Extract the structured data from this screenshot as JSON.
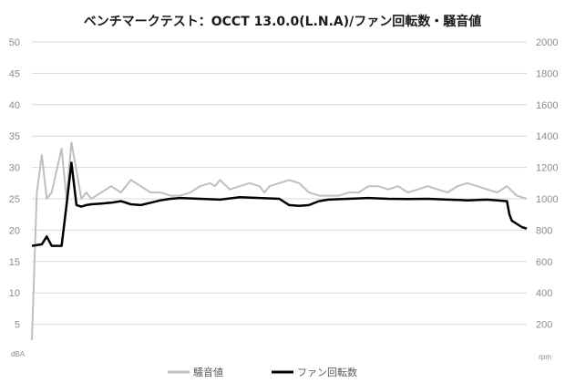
{
  "chart_data": {
    "type": "line",
    "title": "ベンチマークテスト：OCCT 13.0.0(L.N.A)/ファン回転数・騒音値",
    "y_left": {
      "unit_label": "dBA",
      "min": 0,
      "max": 50,
      "ticks": [
        5,
        10,
        15,
        20,
        25,
        30,
        35,
        40,
        45,
        50
      ]
    },
    "y_right": {
      "unit_label": "rpm",
      "min": 0,
      "max": 2000,
      "ticks": [
        200,
        400,
        600,
        800,
        1000,
        1200,
        1400,
        1600,
        1800,
        2000
      ]
    },
    "grid": true,
    "legend_position": "bottom",
    "series": [
      {
        "name": "騒音値",
        "axis": "left",
        "color": "#bfbfbf",
        "x": [
          0,
          1,
          2,
          3,
          4,
          6,
          7,
          8,
          10,
          11,
          12,
          14,
          16,
          18,
          20,
          22,
          24,
          26,
          28,
          29,
          30,
          32,
          34,
          36,
          37,
          38,
          40,
          42,
          44,
          46,
          47,
          48,
          50,
          52,
          54,
          56,
          58,
          60,
          62,
          64,
          66,
          68,
          70,
          72,
          74,
          76,
          78,
          80,
          82,
          84,
          86,
          88,
          90,
          92,
          94,
          96,
          98,
          100
        ],
        "values": [
          2.5,
          26,
          32,
          25,
          26,
          33,
          25,
          34,
          25,
          26,
          25,
          26,
          27,
          26,
          28,
          27,
          26,
          26,
          25.5,
          25.5,
          25.5,
          26,
          27,
          27.5,
          27,
          28,
          26.5,
          27,
          27.5,
          27,
          26,
          27,
          27.5,
          28,
          27.5,
          26,
          25.5,
          25.5,
          25.5,
          26,
          26,
          27,
          27,
          26.5,
          27,
          26,
          26.5,
          27,
          26.5,
          26,
          27,
          27.5,
          27,
          26.5,
          26,
          27,
          25.5,
          25
        ]
      },
      {
        "name": "ファン回転数",
        "axis": "right",
        "color": "#000000",
        "x": [
          0,
          2,
          3,
          4,
          6,
          7,
          8,
          9,
          10,
          11,
          12,
          14,
          16,
          18,
          20,
          22,
          24,
          26,
          28,
          30,
          34,
          38,
          42,
          46,
          50,
          52,
          54,
          56,
          58,
          60,
          64,
          68,
          72,
          76,
          80,
          84,
          88,
          92,
          96,
          96.5,
          97,
          98,
          99,
          100
        ],
        "values": [
          700,
          710,
          760,
          700,
          700,
          960,
          1230,
          960,
          950,
          960,
          965,
          970,
          975,
          985,
          965,
          960,
          975,
          990,
          1000,
          1005,
          1000,
          995,
          1010,
          1005,
          1000,
          960,
          955,
          960,
          985,
          995,
          1000,
          1005,
          1000,
          998,
          1000,
          995,
          990,
          995,
          985,
          900,
          860,
          840,
          820,
          810
        ]
      }
    ]
  }
}
